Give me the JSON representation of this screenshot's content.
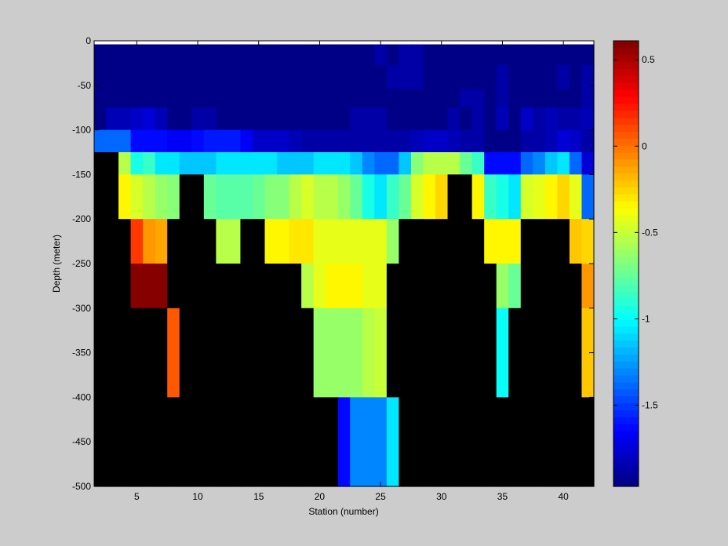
{
  "chart_data": {
    "type": "heatmap",
    "title": "",
    "xlabel": "Station (number)",
    "ylabel": "Depth (meter)",
    "xlim": [
      1.5,
      42.5
    ],
    "ylim": [
      -500,
      0
    ],
    "xticks": [
      5,
      10,
      15,
      20,
      25,
      30,
      35,
      40
    ],
    "yticks": [
      0,
      -50,
      -100,
      -150,
      -200,
      -250,
      -300,
      -350,
      -400,
      -450,
      -500
    ],
    "colorbar": {
      "colormap": "jet",
      "clim": [
        -1.97,
        0.61
      ],
      "ticks": [
        0.5,
        0,
        -0.5,
        -1,
        -1.5
      ],
      "levels": 64
    },
    "missing_color": "#000000",
    "x": [
      2,
      3,
      4,
      5,
      6,
      7,
      8,
      9,
      10,
      11,
      12,
      13,
      14,
      15,
      16,
      17,
      18,
      19,
      20,
      21,
      22,
      23,
      24,
      25,
      26,
      27,
      28,
      29,
      30,
      31,
      32,
      33,
      34,
      35,
      36,
      37,
      38,
      39,
      40,
      41,
      42
    ],
    "depth_bins": [
      {
        "top": -4,
        "bottom": -27
      },
      {
        "top": -27,
        "bottom": -54
      },
      {
        "top": -54,
        "bottom": -75
      },
      {
        "top": -75,
        "bottom": -100
      },
      {
        "top": -100,
        "bottom": -125
      },
      {
        "top": -125,
        "bottom": -150
      },
      {
        "top": -150,
        "bottom": -200
      },
      {
        "top": -200,
        "bottom": -250
      },
      {
        "top": -250,
        "bottom": -300
      },
      {
        "top": -300,
        "bottom": -400
      },
      {
        "top": -400,
        "bottom": -500
      }
    ],
    "values": [
      [
        -1.93,
        -1.93,
        -1.93,
        -1.93,
        -1.93,
        -1.93,
        -1.93,
        -1.93,
        -1.93,
        -1.93,
        -1.93,
        -1.93,
        -1.93,
        -1.93,
        -1.93,
        -1.93,
        -1.93,
        -1.93,
        -1.93,
        -1.93,
        -1.93,
        -1.93,
        -1.93,
        -1.88,
        -1.93,
        -1.88,
        -1.88,
        -1.93,
        -1.93,
        -1.93,
        -1.93,
        -1.93,
        -1.93,
        -1.93,
        -1.93,
        -1.93,
        -1.93,
        -1.93,
        -1.93,
        -1.93,
        -1.93
      ],
      [
        -1.93,
        -1.93,
        -1.93,
        -1.93,
        -1.93,
        -1.93,
        -1.93,
        -1.93,
        -1.93,
        -1.93,
        -1.93,
        -1.93,
        -1.93,
        -1.93,
        -1.93,
        -1.93,
        -1.93,
        -1.93,
        -1.93,
        -1.93,
        -1.93,
        -1.93,
        -1.93,
        -1.93,
        -1.88,
        -1.88,
        -1.88,
        -1.93,
        -1.93,
        -1.93,
        -1.93,
        -1.93,
        -1.93,
        -1.88,
        -1.93,
        -1.93,
        -1.93,
        -1.93,
        -1.88,
        -1.93,
        -1.88
      ],
      [
        -1.93,
        -1.93,
        -1.93,
        -1.93,
        -1.93,
        -1.93,
        -1.93,
        -1.93,
        -1.93,
        -1.93,
        -1.93,
        -1.93,
        -1.93,
        -1.93,
        -1.93,
        -1.93,
        -1.93,
        -1.93,
        -1.93,
        -1.93,
        -1.93,
        -1.93,
        -1.93,
        -1.93,
        -1.93,
        -1.93,
        -1.93,
        -1.93,
        -1.93,
        -1.93,
        -1.88,
        -1.88,
        -1.93,
        -1.88,
        -1.93,
        -1.93,
        -1.93,
        -1.93,
        -1.93,
        -1.93,
        -1.88
      ],
      [
        -1.93,
        -1.83,
        -1.83,
        -1.78,
        -1.73,
        -1.83,
        -1.93,
        -1.93,
        -1.88,
        -1.88,
        -1.93,
        -1.97,
        -1.97,
        -1.97,
        -1.95,
        -1.95,
        -1.93,
        -1.93,
        -1.93,
        -1.93,
        -1.93,
        -1.88,
        -1.88,
        -1.88,
        -1.93,
        -1.97,
        -1.93,
        -1.93,
        -1.93,
        -1.88,
        -1.93,
        -1.88,
        -1.93,
        -1.83,
        -1.93,
        -1.78,
        -1.88,
        -1.83,
        -1.88,
        -1.88,
        -1.83
      ],
      [
        -1.4,
        -1.4,
        -1.4,
        -1.62,
        -1.62,
        -1.62,
        -1.67,
        -1.67,
        -1.62,
        -1.57,
        -1.57,
        -1.57,
        -1.67,
        -1.78,
        -1.78,
        -1.78,
        -1.83,
        -1.88,
        -1.88,
        -1.88,
        -1.88,
        -1.88,
        -1.88,
        -1.88,
        -1.88,
        -1.88,
        -1.83,
        -1.78,
        -1.78,
        -1.83,
        -1.88,
        -1.88,
        -1.97,
        -1.97,
        -1.93,
        -1.88,
        -1.88,
        -1.83,
        -1.73,
        -1.78,
        -1.88
      ],
      [
        null,
        null,
        -0.55,
        -0.95,
        -0.85,
        -1.05,
        -1.05,
        -1.15,
        -1.15,
        -1.15,
        -1.05,
        -1.05,
        -1.05,
        -1.05,
        -1.05,
        -1.15,
        -1.15,
        -1.15,
        -1.05,
        -1.05,
        -1.05,
        -1.15,
        -1.3,
        -1.4,
        -1.4,
        -1.15,
        -0.65,
        -0.55,
        -0.55,
        -0.55,
        -0.75,
        -0.85,
        -1.62,
        -1.62,
        -1.62,
        -1.4,
        -1.3,
        -1.15,
        -1.05,
        -1.4,
        -1.73
      ],
      [
        null,
        null,
        -0.35,
        -0.45,
        -0.55,
        -0.6,
        -0.65,
        null,
        null,
        -0.75,
        -0.8,
        -0.8,
        -0.8,
        -0.75,
        -0.65,
        -0.65,
        -0.55,
        -0.45,
        -0.55,
        -0.55,
        -0.6,
        -0.75,
        -0.95,
        -1.05,
        -0.85,
        -0.75,
        -0.45,
        -0.35,
        -0.25,
        null,
        null,
        -0.35,
        -0.85,
        -0.95,
        -1.05,
        -0.45,
        -0.4,
        -0.35,
        -0.25,
        -0.4,
        -1.4
      ],
      [
        null,
        null,
        null,
        0.15,
        -0.1,
        -0.15,
        null,
        null,
        null,
        null,
        -0.55,
        -0.55,
        null,
        null,
        -0.35,
        -0.35,
        -0.3,
        -0.3,
        -0.4,
        -0.4,
        -0.4,
        -0.4,
        -0.4,
        -0.4,
        -0.6,
        null,
        null,
        null,
        null,
        null,
        null,
        null,
        -0.35,
        -0.35,
        -0.35,
        null,
        null,
        null,
        null,
        -0.2,
        -0.25
      ],
      [
        null,
        null,
        null,
        0.61,
        0.61,
        0.61,
        null,
        null,
        null,
        null,
        null,
        null,
        null,
        null,
        null,
        null,
        null,
        -0.55,
        -0.4,
        -0.35,
        -0.35,
        -0.35,
        -0.4,
        -0.4,
        null,
        null,
        null,
        null,
        null,
        null,
        null,
        null,
        null,
        -0.6,
        -0.75,
        null,
        null,
        null,
        null,
        null,
        -0.1
      ],
      [
        null,
        null,
        null,
        null,
        null,
        null,
        0.05,
        null,
        null,
        null,
        null,
        null,
        null,
        null,
        null,
        null,
        null,
        null,
        -0.6,
        -0.6,
        -0.6,
        -0.6,
        -0.55,
        -0.5,
        null,
        null,
        null,
        null,
        null,
        null,
        null,
        null,
        null,
        -1.0,
        null,
        null,
        null,
        null,
        null,
        null,
        -0.2
      ],
      [
        null,
        null,
        null,
        null,
        null,
        null,
        null,
        null,
        null,
        null,
        null,
        null,
        null,
        null,
        null,
        null,
        null,
        null,
        null,
        null,
        -1.62,
        -1.3,
        -1.3,
        -1.3,
        -1.05,
        null,
        null,
        null,
        null,
        null,
        null,
        null,
        null,
        null,
        null,
        null,
        null,
        null,
        null,
        null,
        null
      ]
    ]
  }
}
